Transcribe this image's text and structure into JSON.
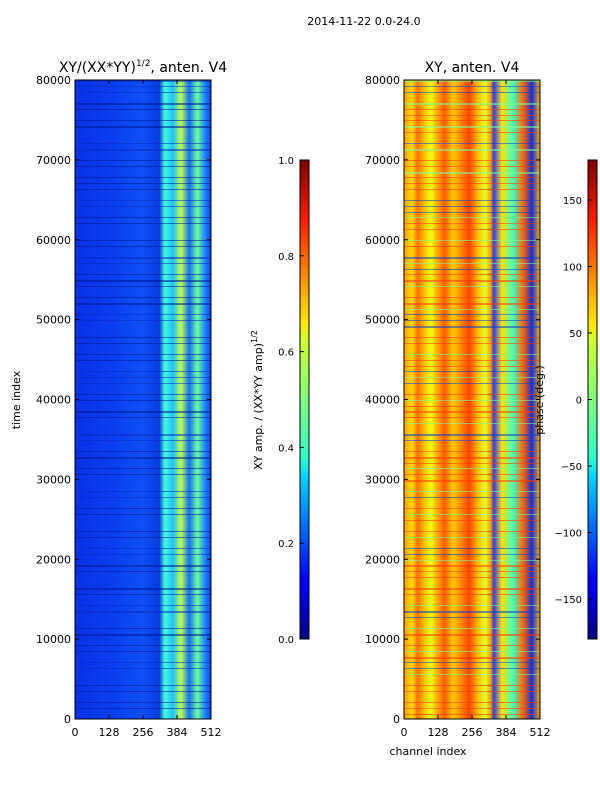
{
  "suptitle": "2014-11-22 0.0-24.0",
  "chart_data": [
    {
      "type": "heatmap",
      "title": "XY/(XX*YY)",
      "title_exp": "1/2",
      "title_suffix": ", anten. V4",
      "xlabel": "",
      "ylabel": "time index",
      "xlim": [
        0,
        512
      ],
      "ylim": [
        0,
        80000
      ],
      "xticks": [
        0,
        128,
        256,
        384,
        512
      ],
      "yticks": [
        0,
        10000,
        20000,
        30000,
        40000,
        50000,
        60000,
        70000,
        80000
      ],
      "colorbar": {
        "label": "XY amp. / (XX*YY amp)",
        "label_exp": "1/2",
        "range": [
          0.0,
          1.0
        ],
        "ticks": [
          "0.0",
          "0.2",
          "0.4",
          "0.6",
          "0.8",
          "1.0"
        ],
        "colormap": "jet"
      }
    },
    {
      "type": "heatmap",
      "title": "XY, anten. V4",
      "xlabel": "channel index",
      "ylabel": "",
      "xlim": [
        0,
        512
      ],
      "ylim": [
        0,
        80000
      ],
      "xticks": [
        0,
        128,
        256,
        384,
        512
      ],
      "yticks": [
        0,
        10000,
        20000,
        30000,
        40000,
        50000,
        60000,
        70000,
        80000
      ],
      "colorbar": {
        "label": "phase (deg.)",
        "range": [
          -180,
          180
        ],
        "ticks": [
          "−150",
          "−100",
          "−50",
          "0",
          "50",
          "100",
          "150"
        ],
        "tick_values": [
          -150,
          -100,
          -50,
          0,
          50,
          100,
          150
        ],
        "colormap": "jet"
      }
    }
  ]
}
